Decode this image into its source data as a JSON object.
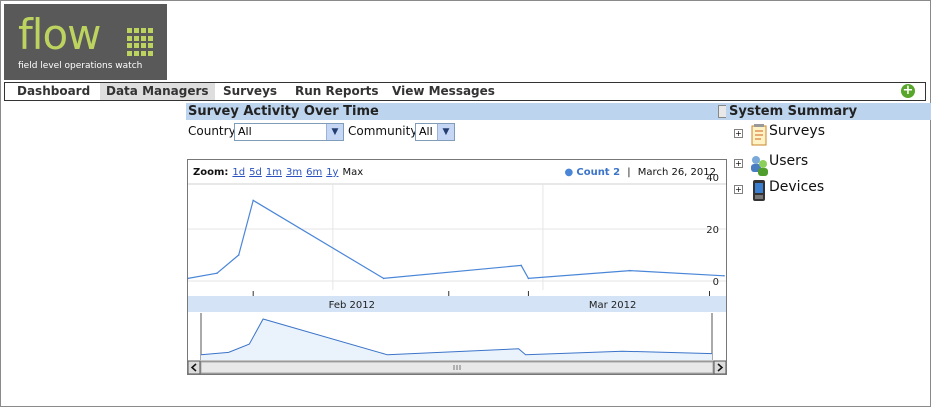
{
  "logo": {
    "word": "flow",
    "tagline": "field level operations watch"
  },
  "nav": {
    "items": [
      {
        "label": "Dashboard"
      },
      {
        "label": "Data Managers"
      },
      {
        "label": "Surveys"
      },
      {
        "label": "Run Reports"
      },
      {
        "label": "View Messages"
      }
    ],
    "active_index": 1,
    "add_icon": "plus-circle-icon"
  },
  "survey_activity": {
    "title": "Survey Activity Over Time",
    "country_label": "Country",
    "country_value": "All",
    "community_label": "Community",
    "community_value": "All"
  },
  "chart": {
    "zoom_label": "Zoom:",
    "zoom_options": [
      "1d",
      "5d",
      "1m",
      "3m",
      "6m",
      "1y"
    ],
    "zoom_max": "Max",
    "legend_series": "Count",
    "legend_value": "2",
    "legend_date": "March 26, 2012",
    "legend_separator": "|"
  },
  "chart_data": {
    "type": "line",
    "title": "",
    "xlabel": "",
    "ylabel": "",
    "x_tick_labels": [
      "Feb 2012",
      "Mar 2012"
    ],
    "y_tick_labels": [
      "40",
      "20",
      "0"
    ],
    "ylim": [
      0,
      40
    ],
    "grid": true,
    "series": [
      {
        "name": "Count",
        "x": [
          "2012-01-12",
          "2012-01-16",
          "2012-01-19",
          "2012-01-21",
          "2012-02-08",
          "2012-02-27",
          "2012-02-28",
          "2012-03-13",
          "2012-03-26"
        ],
        "values": [
          1,
          3,
          10,
          31,
          1,
          6,
          1,
          4,
          2
        ]
      }
    ],
    "navigator_series_color": "#3b74c9",
    "line_color": "#4a86d8"
  },
  "system_summary": {
    "title": "System Summary",
    "items": [
      {
        "label": "Surveys",
        "icon": "surveys-notepad-icon"
      },
      {
        "label": "Users",
        "icon": "users-people-icon"
      },
      {
        "label": "Devices",
        "icon": "devices-phone-icon"
      }
    ]
  },
  "colors": {
    "header_band": "#bcd4ed",
    "logo_bg": "#595959",
    "logo_accent": "#bcd35f",
    "add_button": "#59a62c"
  }
}
